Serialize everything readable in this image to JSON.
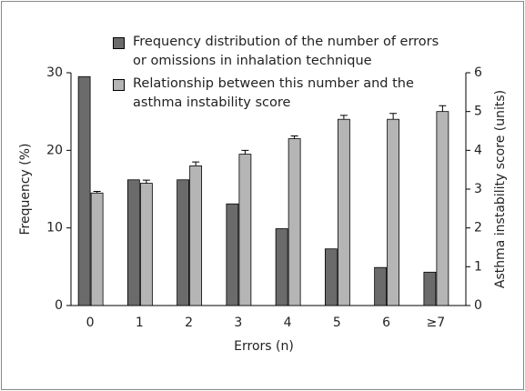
{
  "chart_data": {
    "type": "bar",
    "categories": [
      "0",
      "1",
      "2",
      "3",
      "4",
      "5",
      "6",
      "≥7"
    ],
    "series": [
      {
        "name": "Frequency distribution of the number of errors or omissions in inhalation technique",
        "color": "#6b6b6b",
        "values": [
          29.5,
          16.2,
          16.2,
          13.1,
          9.9,
          7.3,
          4.9,
          4.3
        ]
      },
      {
        "name": "Relationship between this number and the asthma instability score",
        "color": "#b5b5b5",
        "axis": "y2",
        "values": [
          2.9,
          3.15,
          3.6,
          3.9,
          4.3,
          4.8,
          4.8,
          5.0
        ],
        "errors": [
          0.04,
          0.08,
          0.1,
          0.1,
          0.07,
          0.1,
          0.15,
          0.15
        ]
      }
    ],
    "x_label": "Errors (n)",
    "y_label": "Frequency (%)",
    "y2_label": "Asthma instability score (units)",
    "ylim": [
      0,
      30
    ],
    "yticks": [
      0,
      10,
      20,
      30
    ],
    "y2lim": [
      0,
      6
    ],
    "y2ticks": [
      0,
      1,
      2,
      3,
      4,
      5,
      6
    ]
  }
}
